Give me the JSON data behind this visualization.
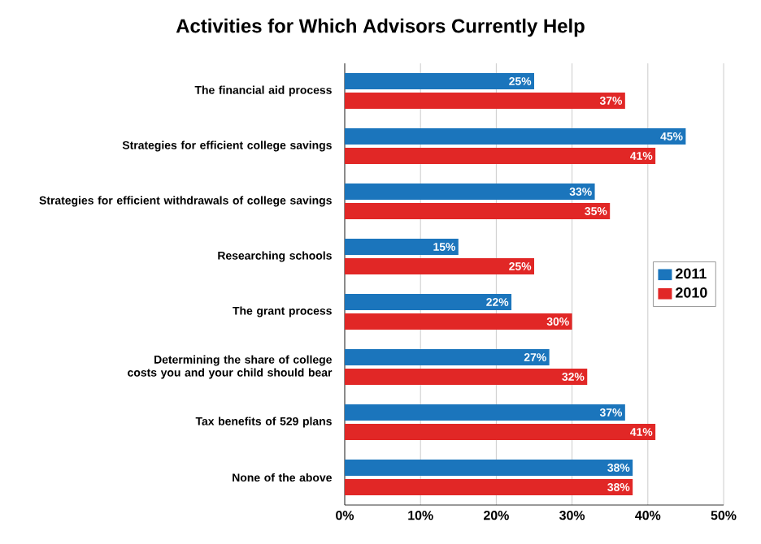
{
  "chart_data": {
    "type": "bar",
    "orientation": "horizontal",
    "title": "Activities for Which Advisors Currently Help",
    "categories": [
      "The financial aid process",
      "Strategies for efficient college savings",
      "Strategies for efficient withdrawals of college savings",
      "Researching schools",
      "The grant process",
      "Determining the share of college costs you and your child should bear",
      "Tax benefits of 529 plans",
      "None of the above"
    ],
    "series": [
      {
        "name": "2011",
        "color": "#1b75bc",
        "values": [
          25,
          45,
          33,
          15,
          22,
          27,
          37,
          38
        ],
        "value_labels": [
          "25%",
          "45%",
          "33%",
          "15%",
          "22%",
          "27%",
          "37%",
          "38%"
        ]
      },
      {
        "name": "2010",
        "color": "#e12726",
        "values": [
          37,
          41,
          35,
          25,
          30,
          32,
          41,
          38
        ],
        "value_labels": [
          "37%",
          "41%",
          "35%",
          "25%",
          "30%",
          "32%",
          "41%",
          "38%"
        ]
      }
    ],
    "xlim": [
      0,
      50
    ],
    "xticks": [
      {
        "value": 0,
        "label": "0%"
      },
      {
        "value": 10,
        "label": "10%"
      },
      {
        "value": 20,
        "label": "20%"
      },
      {
        "value": 30,
        "label": "30%"
      },
      {
        "value": 40,
        "label": "40%"
      },
      {
        "value": 50,
        "label": "50%"
      }
    ],
    "grid": "x",
    "legend": "right"
  }
}
